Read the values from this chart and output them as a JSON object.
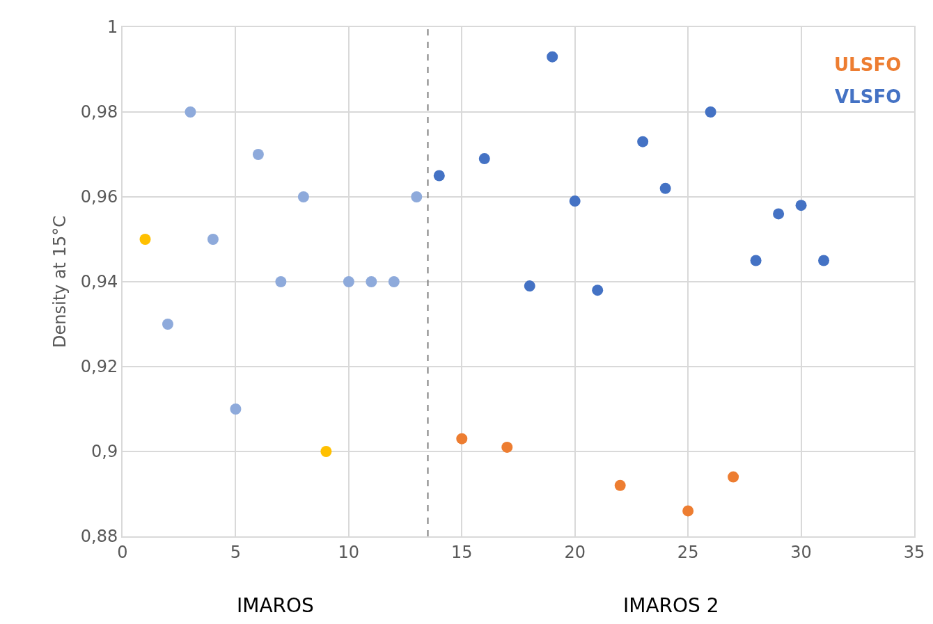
{
  "chart_data": {
    "type": "scatter",
    "ylabel": "Density at 15°C",
    "xlim": [
      0,
      35
    ],
    "xticks": [
      0,
      5,
      10,
      15,
      20,
      25,
      30,
      35
    ],
    "ylim": [
      0.88,
      1
    ],
    "yticks": [
      {
        "value": 0.88,
        "label": "0,88"
      },
      {
        "value": 0.9,
        "label": "0,9"
      },
      {
        "value": 0.92,
        "label": "0,92"
      },
      {
        "value": 0.94,
        "label": "0,94"
      },
      {
        "value": 0.96,
        "label": "0,96"
      },
      {
        "value": 0.98,
        "label": "0,98"
      },
      1
    ],
    "grid": true,
    "marker": "circle",
    "legend": false,
    "series": [
      {
        "color": "#ffc000",
        "x": [
          1,
          9
        ],
        "values": [
          0.95,
          0.9
        ]
      },
      {
        "color": "#8eaadb",
        "x": [
          2,
          3,
          4,
          5,
          6,
          7,
          8,
          10,
          11,
          12,
          13
        ],
        "values": [
          0.93,
          0.98,
          0.95,
          0.91,
          0.97,
          0.94,
          0.96,
          0.94,
          0.94,
          0.94,
          0.96
        ]
      },
      {
        "name": "ULSFO",
        "color": "#ed7d31",
        "x": [
          15,
          17,
          22,
          25,
          27
        ],
        "values": [
          0.903,
          0.901,
          0.892,
          0.886,
          0.894
        ]
      },
      {
        "name": "VLSFO",
        "color": "#4472c4",
        "x": [
          14,
          16,
          18,
          19,
          20,
          21,
          23,
          24,
          26,
          28,
          29,
          30,
          31
        ],
        "values": [
          0.965,
          0.969,
          0.939,
          0.993,
          0.959,
          0.938,
          0.973,
          0.962,
          0.98,
          0.945,
          0.956,
          0.958,
          0.945
        ]
      }
    ],
    "ref_lines": [
      {
        "axis": "x",
        "value": 13.5,
        "color": "#7f7f7f",
        "line_style": "dashed"
      }
    ],
    "annotations": [
      "IMAROS",
      "IMAROS 2"
    ]
  }
}
